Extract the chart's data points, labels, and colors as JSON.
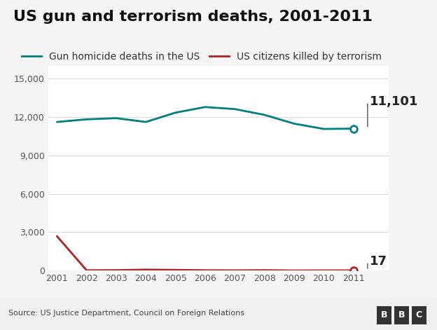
{
  "title": "US gun and terrorism deaths, 2001-2011",
  "years": [
    2001,
    2002,
    2003,
    2004,
    2005,
    2006,
    2007,
    2008,
    2009,
    2010,
    2011
  ],
  "gun_deaths": [
    11623,
    11829,
    11920,
    11624,
    12352,
    12791,
    12632,
    12179,
    11493,
    11078,
    11101
  ],
  "terrorism_deaths": [
    2689,
    25,
    35,
    74,
    56,
    28,
    19,
    33,
    9,
    15,
    17
  ],
  "gun_color": "#008080",
  "terrorism_color": "#b22222",
  "bg_color": "#f5f5f5",
  "plot_bg_color": "#ffffff",
  "grid_color": "#dddddd",
  "legend_gun": "Gun homicide deaths in the US",
  "legend_terrorism": "US citizens killed by terrorism",
  "source_text": "Source: US Justice Department, Council on Foreign Relations",
  "bbc_text": "BBC",
  "ylim": [
    0,
    16000
  ],
  "yticks": [
    0,
    3000,
    6000,
    9000,
    12000,
    15000
  ],
  "annotation_gun_value": "11,101",
  "annotation_terrorism_value": "17",
  "title_fontsize": 16,
  "label_fontsize": 10,
  "tick_fontsize": 9,
  "footer_color": "#f0f0f0"
}
